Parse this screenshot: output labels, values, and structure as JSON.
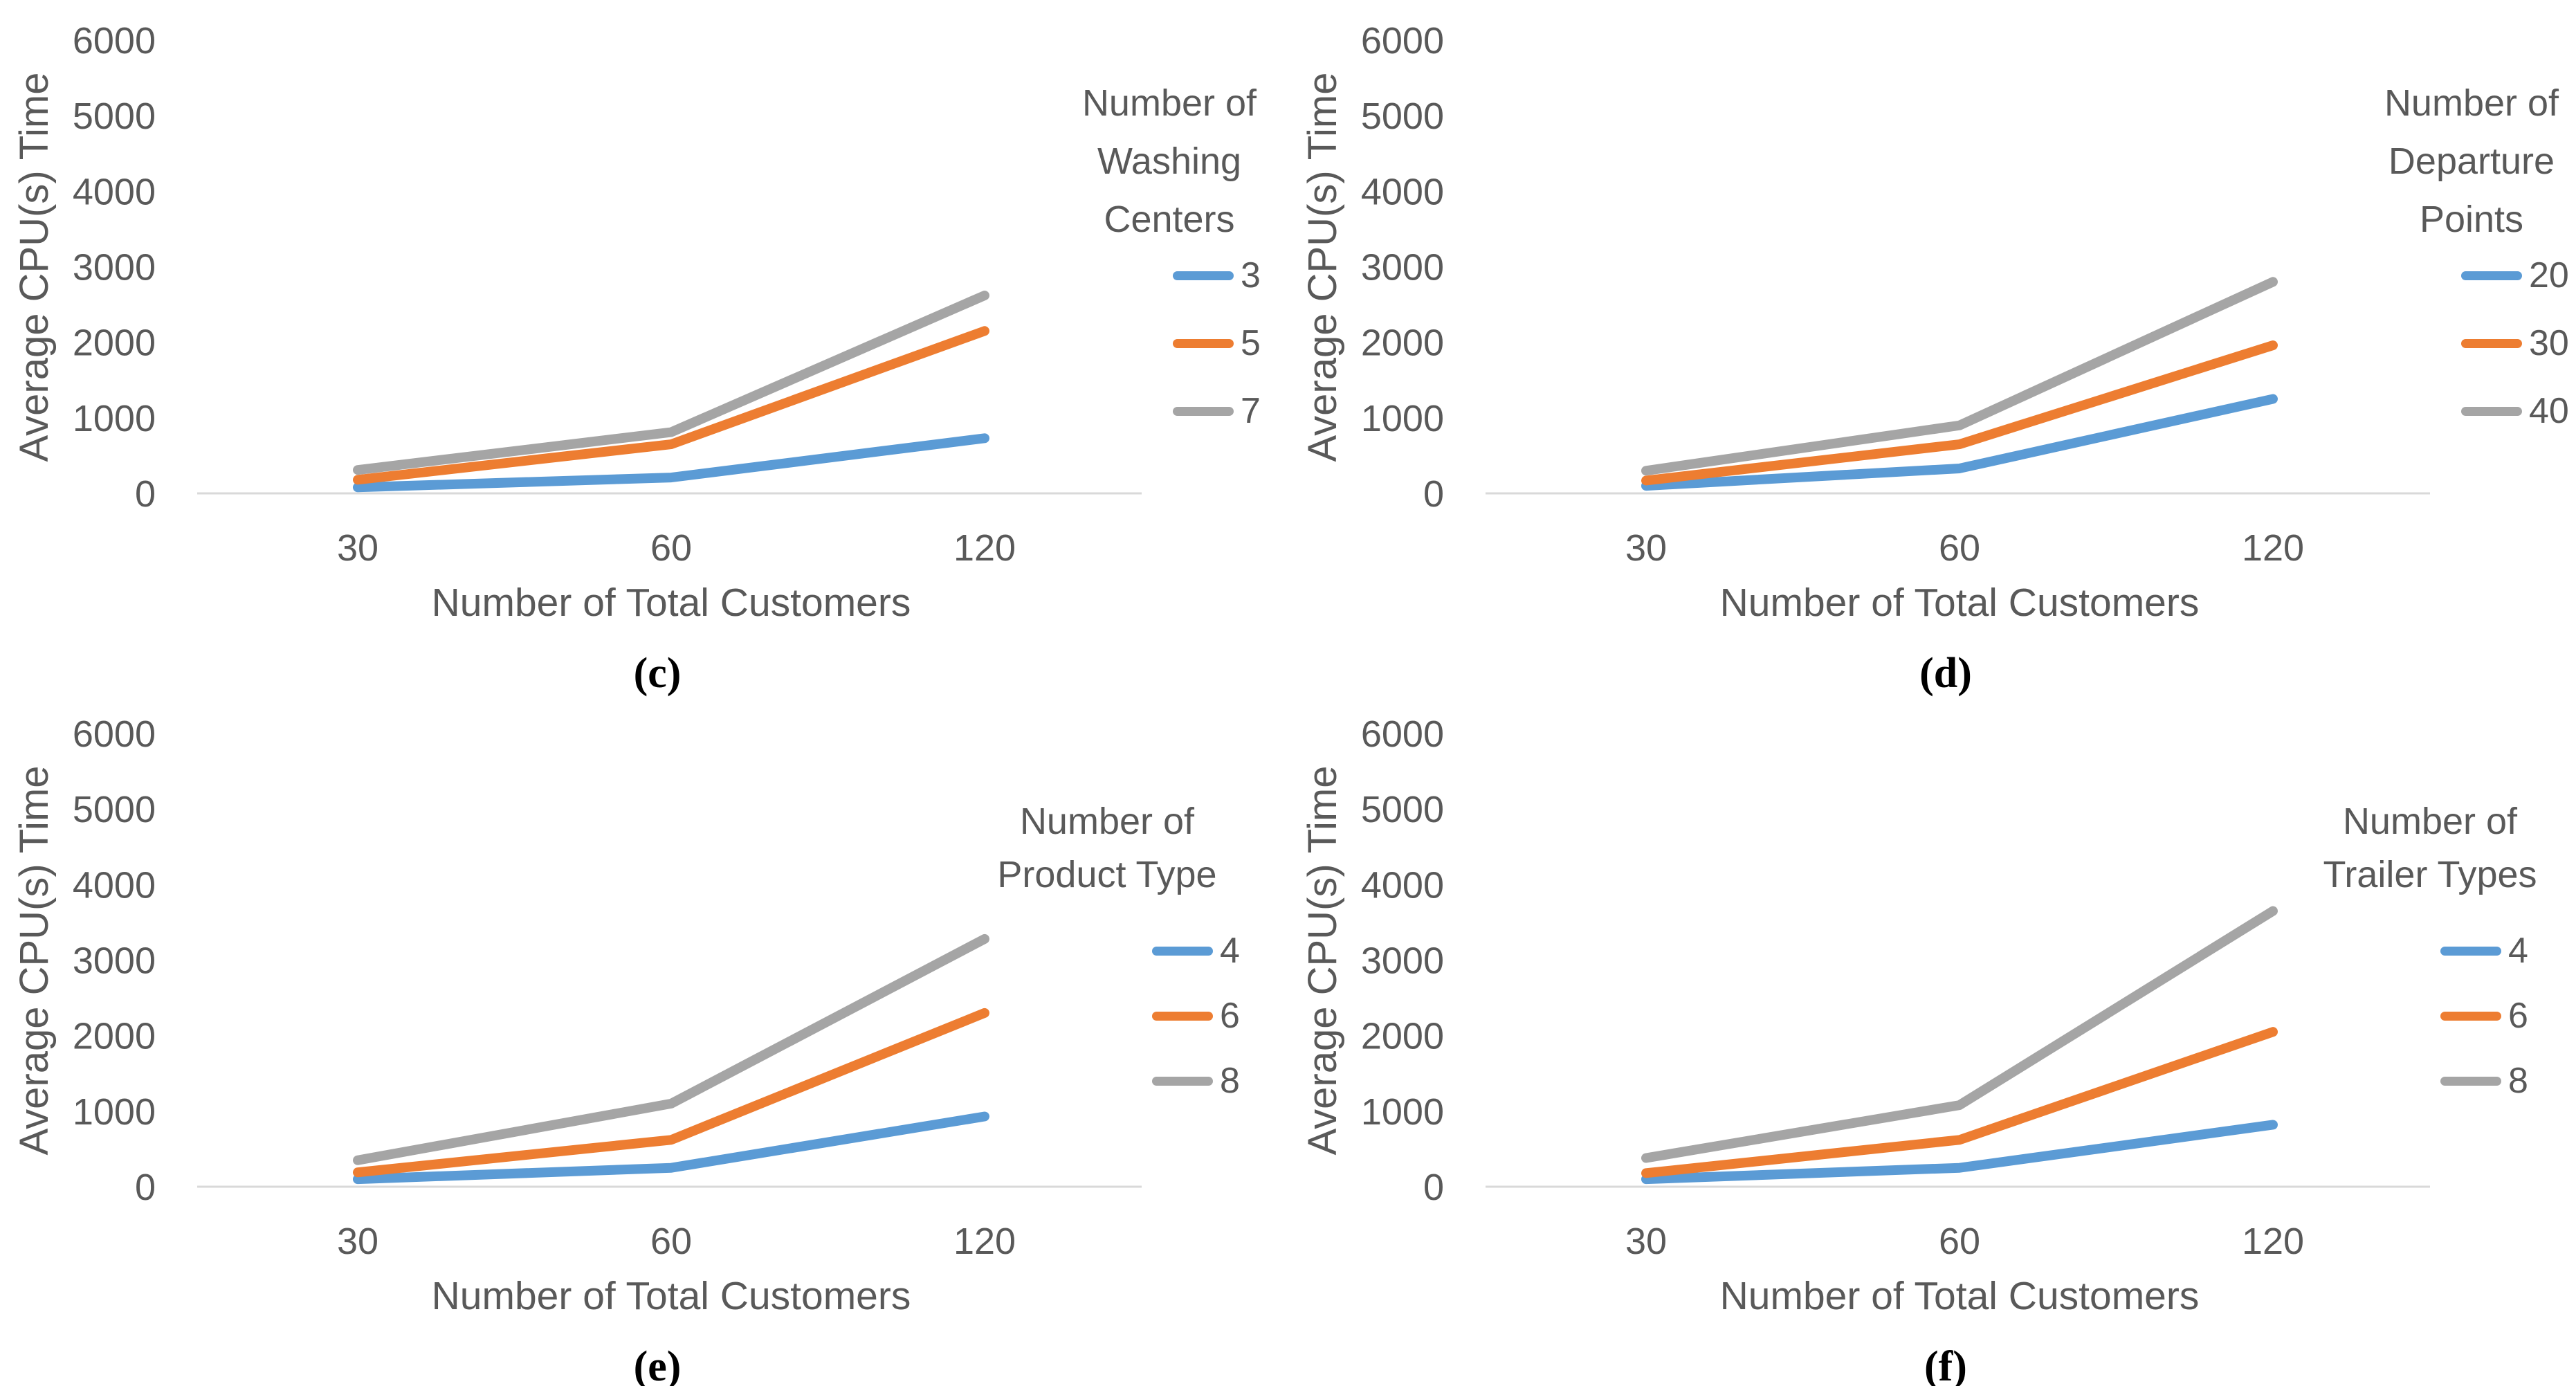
{
  "colors": {
    "axis_line": "#D9D9D9",
    "text": "#595959",
    "accent_blue": "#5B9BD5",
    "accent_orange": "#ED7D31",
    "accent_gray": "#A5A5A5"
  },
  "chart_data": [
    {
      "type": "line",
      "caption": "(c)",
      "xlabel": "Number of Total Customers",
      "ylabel": "Average CPU(s) Time",
      "x_categories": [
        30,
        60,
        120
      ],
      "ylim": [
        0,
        6000
      ],
      "y_tick_step": 1000,
      "grid": false,
      "legend_position": "right",
      "legend_title": "Number of Washing Centers",
      "legend_title_lines": [
        "Number of",
        "Washing",
        "Centers"
      ],
      "series": [
        {
          "name": "3",
          "color": "#5B9BD5",
          "values": [
            80,
            210,
            730
          ]
        },
        {
          "name": "5",
          "color": "#ED7D31",
          "values": [
            180,
            650,
            2150
          ]
        },
        {
          "name": "7",
          "color": "#A5A5A5",
          "values": [
            310,
            810,
            2620
          ]
        }
      ]
    },
    {
      "type": "line",
      "caption": "(d)",
      "xlabel": "Number of Total Customers",
      "ylabel": "Average CPU(s) Time",
      "x_categories": [
        30,
        60,
        120
      ],
      "ylim": [
        0,
        6000
      ],
      "y_tick_step": 1000,
      "grid": false,
      "legend_position": "right",
      "legend_title": "Number of Departure Points",
      "legend_title_lines": [
        "Number of",
        "Departure",
        "Points"
      ],
      "series": [
        {
          "name": "20",
          "color": "#5B9BD5",
          "values": [
            100,
            330,
            1250
          ]
        },
        {
          "name": "30",
          "color": "#ED7D31",
          "values": [
            170,
            650,
            1960
          ]
        },
        {
          "name": "40",
          "color": "#A5A5A5",
          "values": [
            300,
            900,
            2800
          ]
        }
      ]
    },
    {
      "type": "line",
      "caption": "(e)",
      "xlabel": "Number of Total Customers",
      "ylabel": "Average CPU(s) Time",
      "x_categories": [
        30,
        60,
        120
      ],
      "ylim": [
        0,
        6000
      ],
      "y_tick_step": 1000,
      "grid": false,
      "legend_position": "right",
      "legend_title": "Number of Product Type",
      "legend_title_lines": [
        "Number of",
        "Product Type"
      ],
      "series": [
        {
          "name": "4",
          "color": "#5B9BD5",
          "values": [
            100,
            250,
            930
          ]
        },
        {
          "name": "6",
          "color": "#ED7D31",
          "values": [
            190,
            620,
            2300
          ]
        },
        {
          "name": "8",
          "color": "#A5A5A5",
          "values": [
            350,
            1100,
            3280
          ]
        }
      ]
    },
    {
      "type": "line",
      "caption": "(f)",
      "xlabel": "Number of Total Customers",
      "ylabel": "Average CPU(s) Time",
      "x_categories": [
        30,
        60,
        120
      ],
      "ylim": [
        0,
        6000
      ],
      "y_tick_step": 1000,
      "grid": false,
      "legend_position": "right",
      "legend_title": "Number of Trailer Types",
      "legend_title_lines": [
        "Number of",
        "Trailer Types"
      ],
      "series": [
        {
          "name": "4",
          "color": "#5B9BD5",
          "values": [
            100,
            250,
            820
          ]
        },
        {
          "name": "6",
          "color": "#ED7D31",
          "values": [
            180,
            620,
            2050
          ]
        },
        {
          "name": "8",
          "color": "#A5A5A5",
          "values": [
            380,
            1080,
            3650
          ]
        }
      ]
    }
  ]
}
